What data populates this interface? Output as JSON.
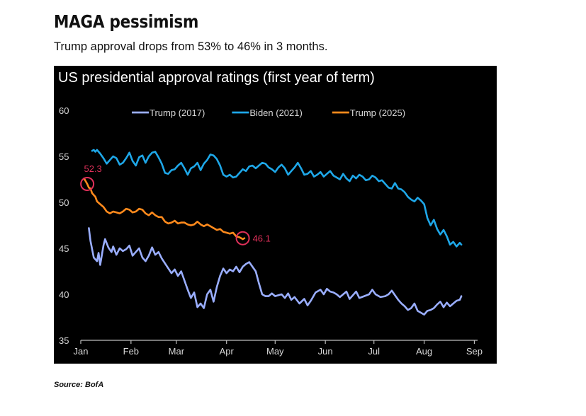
{
  "headline": "MAGA pessimism",
  "subheadline": "Trump approval drops from 53% to 46% in 3 months.",
  "source": "Source: BofA",
  "chart_data": {
    "type": "line",
    "title": "US presidential approval ratings (first year of term)",
    "xlabel": "",
    "ylabel": "",
    "x_unit": "day of year",
    "xlim": [
      0,
      245
    ],
    "ylim": [
      35,
      60
    ],
    "y_ticks": [
      35,
      40,
      45,
      50,
      55,
      60
    ],
    "x_ticks": [
      {
        "label": "Jan",
        "x": 0
      },
      {
        "label": "Feb",
        "x": 31
      },
      {
        "label": "Mar",
        "x": 59
      },
      {
        "label": "Apr",
        "x": 90
      },
      {
        "label": "May",
        "x": 120
      },
      {
        "label": "Jun",
        "x": 151
      },
      {
        "label": "Jul",
        "x": 181
      },
      {
        "label": "Aug",
        "x": 212
      },
      {
        "label": "Sep",
        "x": 243
      }
    ],
    "grid": false,
    "legend_position": "top",
    "series": [
      {
        "name": "Trump (2017)",
        "color": "#9aaeff",
        "x": [
          5,
          6,
          8,
          10,
          11,
          12,
          14,
          15,
          17,
          19,
          20,
          22,
          24,
          26,
          28,
          30,
          32,
          34,
          36,
          38,
          40,
          42,
          44,
          46,
          48,
          50,
          53,
          56,
          58,
          60,
          62,
          64,
          66,
          68,
          70,
          72,
          74,
          76,
          78,
          80,
          82,
          84,
          86,
          88,
          90,
          92,
          94,
          96,
          98,
          100,
          102,
          104,
          106,
          108,
          110,
          112,
          114,
          116,
          118,
          120,
          122,
          124,
          126,
          128,
          130,
          132,
          135,
          138,
          140,
          142,
          145,
          148,
          150,
          152,
          154,
          156,
          158,
          160,
          162,
          164,
          166,
          168,
          170,
          172,
          175,
          178,
          180,
          182,
          185,
          188,
          190,
          192,
          194,
          196,
          198,
          200,
          202,
          204,
          206,
          208,
          210,
          212,
          214,
          216,
          218,
          220,
          222,
          224,
          226,
          228,
          230,
          232,
          234,
          235
        ],
        "y": [
          47.2,
          45.8,
          44.0,
          43.6,
          44.5,
          43.2,
          45.3,
          46.0,
          45.1,
          44.6,
          45.2,
          44.3,
          45.0,
          44.7,
          44.9,
          45.3,
          44.2,
          44.6,
          45.0,
          44.0,
          43.6,
          44.2,
          45.1,
          44.3,
          44.6,
          43.9,
          43.1,
          42.3,
          42.7,
          42.0,
          42.5,
          41.5,
          40.5,
          39.6,
          40.2,
          38.6,
          39.0,
          38.5,
          40.0,
          40.5,
          39.2,
          40.8,
          42.0,
          42.8,
          42.3,
          42.7,
          42.5,
          43.0,
          42.4,
          43.0,
          43.3,
          43.5,
          43.0,
          42.5,
          41.2,
          40.0,
          39.8,
          39.8,
          40.1,
          39.8,
          39.9,
          40.0,
          39.6,
          40.1,
          39.4,
          39.7,
          39.0,
          39.5,
          38.8,
          39.3,
          40.2,
          40.5,
          40.0,
          40.6,
          40.3,
          40.2,
          40.0,
          39.7,
          40.0,
          40.3,
          39.5,
          39.9,
          40.3,
          39.6,
          39.8,
          40.0,
          40.5,
          40.0,
          39.7,
          39.8,
          40.0,
          40.4,
          39.9,
          39.4,
          39.0,
          38.7,
          38.3,
          38.5,
          39.0,
          38.2,
          38.0,
          37.8,
          38.2,
          38.3,
          38.5,
          38.9,
          39.2,
          38.6,
          39.1,
          38.7,
          39.0,
          39.3,
          39.4,
          39.8
        ]
      },
      {
        "name": "Biden (2021)",
        "color": "#1ea7e8",
        "x": [
          7,
          8,
          9,
          10,
          12,
          14,
          16,
          18,
          20,
          22,
          24,
          26,
          28,
          30,
          32,
          34,
          36,
          38,
          40,
          42,
          44,
          46,
          48,
          50,
          52,
          54,
          56,
          58,
          60,
          62,
          64,
          66,
          68,
          70,
          72,
          74,
          76,
          78,
          80,
          82,
          84,
          86,
          88,
          90,
          92,
          94,
          96,
          98,
          100,
          102,
          104,
          106,
          108,
          110,
          112,
          114,
          116,
          118,
          120,
          122,
          124,
          126,
          128,
          130,
          132,
          134,
          136,
          138,
          140,
          142,
          144,
          146,
          148,
          150,
          152,
          154,
          156,
          158,
          160,
          162,
          164,
          166,
          168,
          170,
          172,
          174,
          176,
          178,
          180,
          182,
          184,
          186,
          188,
          190,
          192,
          194,
          196,
          198,
          200,
          202,
          204,
          206,
          208,
          210,
          212,
          214,
          216,
          218,
          220,
          222,
          224,
          226,
          228,
          230,
          232,
          234,
          235
        ],
        "y": [
          55.6,
          55.7,
          55.5,
          55.7,
          55.3,
          54.8,
          54.2,
          54.6,
          55.0,
          54.8,
          54.1,
          54.3,
          54.8,
          55.4,
          54.5,
          54.0,
          54.9,
          55.1,
          54.3,
          55.0,
          55.4,
          55.5,
          54.9,
          54.2,
          53.2,
          53.1,
          53.5,
          53.6,
          54.0,
          54.3,
          53.7,
          53.0,
          53.7,
          53.9,
          54.3,
          53.5,
          54.2,
          54.6,
          55.2,
          55.1,
          54.7,
          54.0,
          53.0,
          52.8,
          53.0,
          52.7,
          52.8,
          53.2,
          53.6,
          53.4,
          53.9,
          54.0,
          53.7,
          54.0,
          54.3,
          54.2,
          53.8,
          53.6,
          53.3,
          53.8,
          54.1,
          53.7,
          53.0,
          53.4,
          53.8,
          54.3,
          53.7,
          53.0,
          53.1,
          53.4,
          52.8,
          53.0,
          53.3,
          52.8,
          53.1,
          53.4,
          52.9,
          52.7,
          52.5,
          53.1,
          52.6,
          52.3,
          52.9,
          52.6,
          53.0,
          52.8,
          52.4,
          52.5,
          52.9,
          52.7,
          52.3,
          52.4,
          52.0,
          51.6,
          51.5,
          52.1,
          51.5,
          51.4,
          51.1,
          50.6,
          50.3,
          50.1,
          50.5,
          50.2,
          49.8,
          48.3,
          47.5,
          48.1,
          47.1,
          46.5,
          47.0,
          46.3,
          45.4,
          45.7,
          45.2,
          45.6,
          45.4
        ]
      },
      {
        "name": "Trump (2025)",
        "color": "#ff8a1c",
        "x": [
          2,
          3,
          4,
          5,
          6,
          7,
          8,
          9,
          10,
          12,
          14,
          16,
          18,
          20,
          22,
          24,
          26,
          28,
          30,
          32,
          34,
          36,
          38,
          40,
          42,
          44,
          46,
          48,
          50,
          52,
          54,
          56,
          58,
          60,
          62,
          64,
          66,
          68,
          70,
          72,
          74,
          76,
          78,
          80,
          82,
          84,
          86,
          88,
          90,
          92,
          94,
          96,
          98,
          100,
          101
        ],
        "y": [
          52.6,
          52.3,
          52.0,
          51.6,
          51.5,
          51.0,
          50.8,
          50.6,
          50.1,
          49.8,
          49.5,
          49.0,
          48.8,
          49.0,
          48.9,
          48.8,
          49.0,
          49.3,
          49.2,
          48.9,
          49.0,
          49.3,
          49.2,
          48.8,
          48.6,
          48.9,
          48.6,
          48.4,
          48.4,
          47.9,
          47.7,
          47.8,
          48.0,
          47.7,
          47.8,
          47.8,
          47.6,
          47.5,
          47.6,
          47.9,
          47.6,
          47.4,
          47.6,
          47.4,
          47.2,
          47.0,
          47.1,
          46.8,
          46.7,
          46.6,
          46.7,
          46.3,
          46.2,
          46.0,
          46.1
        ]
      }
    ],
    "annotations": [
      {
        "label": "52.3",
        "x": 4,
        "y": 52.0,
        "color": "#e0305a"
      },
      {
        "label": "46.1",
        "x": 100,
        "y": 46.1,
        "color": "#e0305a"
      }
    ]
  }
}
